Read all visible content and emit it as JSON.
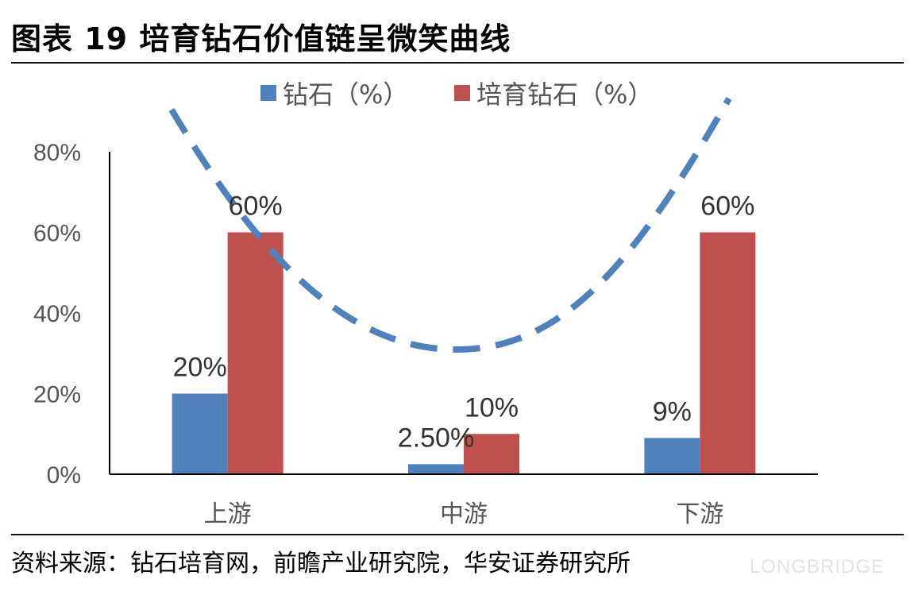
{
  "header": {
    "title": "图表 19  培育钻石价值链呈微笑曲线"
  },
  "footer": {
    "source": "资料来源：钻石培育网，前瞻产业研究院，华安证券研究所"
  },
  "watermark": "LONGBRIDGE",
  "colors": {
    "diamond": "#4F81BD",
    "lab_grown": "#C0504D",
    "curve": "#4F81BD"
  },
  "chart_data": {
    "type": "bar",
    "categories": [
      "上游",
      "中游",
      "下游"
    ],
    "series": [
      {
        "name": "钻石（%）",
        "values": [
          20,
          2.5,
          9
        ],
        "labels": [
          "20%",
          "2.50%",
          "9%"
        ]
      },
      {
        "name": "培育钻石（%）",
        "values": [
          60,
          10,
          60
        ],
        "labels": [
          "60%",
          "10%",
          "60%"
        ]
      }
    ],
    "ylim": [
      0,
      80
    ],
    "yticks": [
      0,
      20,
      40,
      60,
      80
    ],
    "ytick_labels": [
      "0%",
      "20%",
      "40%",
      "60%",
      "80%"
    ],
    "legend_position": "top",
    "grid": false,
    "overlay": {
      "type": "dashed-curve",
      "shape": "smile",
      "meaning": "微笑曲线"
    }
  }
}
